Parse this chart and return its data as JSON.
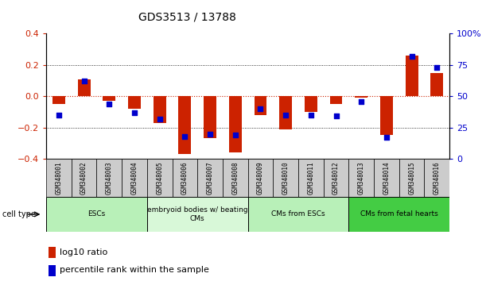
{
  "title": "GDS3513 / 13788",
  "samples": [
    "GSM348001",
    "GSM348002",
    "GSM348003",
    "GSM348004",
    "GSM348005",
    "GSM348006",
    "GSM348007",
    "GSM348008",
    "GSM348009",
    "GSM348010",
    "GSM348011",
    "GSM348012",
    "GSM348013",
    "GSM348014",
    "GSM348015",
    "GSM348016"
  ],
  "log10_ratio": [
    -0.05,
    0.11,
    -0.03,
    -0.08,
    -0.17,
    -0.37,
    -0.27,
    -0.36,
    -0.12,
    -0.21,
    -0.1,
    -0.05,
    -0.01,
    -0.25,
    0.26,
    0.15
  ],
  "percentile_rank": [
    35,
    62,
    44,
    37,
    32,
    18,
    20,
    19,
    40,
    35,
    35,
    34,
    46,
    17,
    82,
    73
  ],
  "cell_type_groups": [
    {
      "label": "ESCs",
      "start": 0,
      "end": 3,
      "color": "#b8f0b8"
    },
    {
      "label": "embryoid bodies w/ beating\nCMs",
      "start": 4,
      "end": 7,
      "color": "#d8f8d8"
    },
    {
      "label": "CMs from ESCs",
      "start": 8,
      "end": 11,
      "color": "#b8f0b8"
    },
    {
      "label": "CMs from fetal hearts",
      "start": 12,
      "end": 15,
      "color": "#44cc44"
    }
  ],
  "ylim_left": [
    -0.4,
    0.4
  ],
  "ylim_right": [
    0,
    100
  ],
  "yticks_left": [
    -0.4,
    -0.2,
    0.0,
    0.2,
    0.4
  ],
  "yticks_right": [
    0,
    25,
    50,
    75,
    100
  ],
  "bar_color_red": "#cc2200",
  "dot_color_blue": "#0000cc",
  "hline_color_red": "#cc2200",
  "title_fontsize": 10,
  "legend_red_label": "log10 ratio",
  "legend_blue_label": "percentile rank within the sample"
}
